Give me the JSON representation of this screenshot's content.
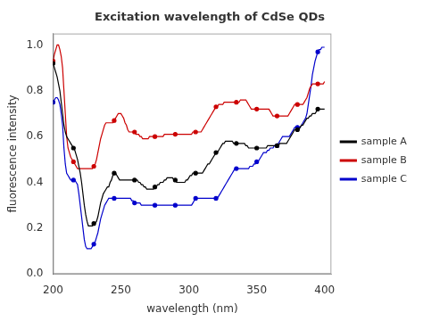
{
  "chart_data": {
    "type": "line",
    "title": "Excitation wavelength of CdSe QDs",
    "xlabel": "wavelength (nm)",
    "ylabel": "fluorescence intensity",
    "xlim": [
      200,
      405
    ],
    "ylim": [
      0,
      1.05
    ],
    "xticks": [
      200,
      250,
      300,
      350,
      400
    ],
    "yticks": [
      {
        "value": 0,
        "label": "0.0"
      },
      0.2,
      0.4,
      0.6,
      0.8,
      {
        "value": 1,
        "label": "1.0"
      }
    ],
    "grid": false,
    "legend": "right",
    "marker": "circle",
    "line_style": "solid",
    "x": [
      200,
      201,
      202,
      203,
      204,
      205,
      206,
      207,
      208,
      209,
      210,
      211,
      212,
      213,
      214,
      215,
      216,
      217,
      218,
      219,
      220,
      221,
      222,
      223,
      224,
      225,
      226,
      227,
      228,
      229,
      230,
      231,
      232,
      233,
      234,
      235,
      236,
      237,
      238,
      239,
      240,
      241,
      242,
      243,
      244,
      245,
      246,
      247,
      248,
      249,
      250,
      251,
      252,
      253,
      254,
      255,
      256,
      257,
      258,
      259,
      260,
      261,
      262,
      263,
      264,
      265,
      266,
      267,
      268,
      269,
      270,
      271,
      272,
      273,
      274,
      275,
      276,
      277,
      278,
      279,
      280,
      281,
      282,
      283,
      284,
      285,
      286,
      287,
      288,
      289,
      290,
      291,
      292,
      293,
      294,
      295,
      296,
      297,
      298,
      299,
      300,
      301,
      302,
      303,
      304,
      305,
      306,
      307,
      308,
      309,
      310,
      311,
      312,
      313,
      314,
      315,
      316,
      317,
      318,
      319,
      320,
      321,
      322,
      323,
      324,
      325,
      326,
      327,
      328,
      329,
      330,
      331,
      332,
      333,
      334,
      335,
      336,
      337,
      338,
      339,
      340,
      341,
      342,
      343,
      344,
      345,
      346,
      347,
      348,
      349,
      350,
      351,
      352,
      353,
      354,
      355,
      356,
      357,
      358,
      359,
      360,
      361,
      362,
      363,
      364,
      365,
      366,
      367,
      368,
      369,
      370,
      371,
      372,
      373,
      374,
      375,
      376,
      377,
      378,
      379,
      380,
      381,
      382,
      383,
      384,
      385,
      386,
      387,
      388,
      389,
      390,
      391,
      392,
      393,
      394,
      395,
      396,
      397,
      398,
      399,
      400
    ],
    "series": [
      {
        "name": "sample A",
        "color": "#000000",
        "values": [
          0.92,
          0.9,
          0.88,
          0.86,
          0.83,
          0.8,
          0.75,
          0.7,
          0.65,
          0.62,
          0.6,
          0.59,
          0.58,
          0.57,
          0.56,
          0.55,
          0.54,
          0.52,
          0.5,
          0.47,
          0.44,
          0.4,
          0.35,
          0.3,
          0.26,
          0.23,
          0.21,
          0.21,
          0.21,
          0.21,
          0.22,
          0.22,
          0.23,
          0.25,
          0.28,
          0.31,
          0.33,
          0.35,
          0.36,
          0.37,
          0.38,
          0.38,
          0.4,
          0.41,
          0.43,
          0.44,
          0.44,
          0.43,
          0.42,
          0.41,
          0.41,
          0.41,
          0.41,
          0.41,
          0.41,
          0.41,
          0.41,
          0.41,
          0.41,
          0.41,
          0.41,
          0.41,
          0.41,
          0.4,
          0.4,
          0.39,
          0.39,
          0.38,
          0.38,
          0.37,
          0.37,
          0.37,
          0.37,
          0.37,
          0.37,
          0.38,
          0.38,
          0.39,
          0.39,
          0.4,
          0.4,
          0.4,
          0.41,
          0.41,
          0.42,
          0.42,
          0.42,
          0.42,
          0.42,
          0.41,
          0.41,
          0.4,
          0.4,
          0.4,
          0.4,
          0.4,
          0.4,
          0.4,
          0.41,
          0.41,
          0.42,
          0.43,
          0.43,
          0.44,
          0.44,
          0.44,
          0.44,
          0.44,
          0.44,
          0.44,
          0.44,
          0.45,
          0.46,
          0.47,
          0.48,
          0.48,
          0.49,
          0.5,
          0.51,
          0.52,
          0.53,
          0.53,
          0.54,
          0.55,
          0.56,
          0.57,
          0.57,
          0.58,
          0.58,
          0.58,
          0.58,
          0.58,
          0.58,
          0.57,
          0.57,
          0.57,
          0.57,
          0.57,
          0.57,
          0.57,
          0.57,
          0.57,
          0.56,
          0.56,
          0.55,
          0.55,
          0.55,
          0.55,
          0.55,
          0.55,
          0.55,
          0.55,
          0.55,
          0.55,
          0.55,
          0.55,
          0.55,
          0.55,
          0.56,
          0.56,
          0.56,
          0.56,
          0.56,
          0.56,
          0.56,
          0.56,
          0.56,
          0.57,
          0.57,
          0.57,
          0.57,
          0.57,
          0.57,
          0.58,
          0.59,
          0.6,
          0.61,
          0.62,
          0.63,
          0.63,
          0.63,
          0.63,
          0.64,
          0.65,
          0.65,
          0.66,
          0.67,
          0.68,
          0.68,
          0.69,
          0.69,
          0.7,
          0.7,
          0.7,
          0.71,
          0.72,
          0.72,
          0.72,
          0.72,
          0.72,
          0.72
        ]
      },
      {
        "name": "sample B",
        "color": "#cc0000",
        "values": [
          0.93,
          0.96,
          0.98,
          1.0,
          1.0,
          0.98,
          0.95,
          0.9,
          0.8,
          0.7,
          0.6,
          0.55,
          0.53,
          0.51,
          0.5,
          0.49,
          0.48,
          0.47,
          0.46,
          0.46,
          0.46,
          0.46,
          0.46,
          0.46,
          0.46,
          0.46,
          0.46,
          0.46,
          0.46,
          0.46,
          0.47,
          0.48,
          0.5,
          0.53,
          0.56,
          0.59,
          0.61,
          0.63,
          0.65,
          0.66,
          0.66,
          0.66,
          0.66,
          0.66,
          0.66,
          0.67,
          0.68,
          0.69,
          0.7,
          0.7,
          0.7,
          0.69,
          0.68,
          0.66,
          0.65,
          0.63,
          0.62,
          0.62,
          0.62,
          0.62,
          0.62,
          0.61,
          0.61,
          0.61,
          0.6,
          0.6,
          0.59,
          0.59,
          0.59,
          0.59,
          0.59,
          0.6,
          0.6,
          0.6,
          0.6,
          0.6,
          0.6,
          0.6,
          0.6,
          0.6,
          0.6,
          0.6,
          0.61,
          0.61,
          0.61,
          0.61,
          0.61,
          0.61,
          0.61,
          0.61,
          0.61,
          0.61,
          0.61,
          0.61,
          0.61,
          0.61,
          0.61,
          0.61,
          0.61,
          0.61,
          0.61,
          0.61,
          0.61,
          0.62,
          0.62,
          0.62,
          0.62,
          0.62,
          0.62,
          0.62,
          0.63,
          0.64,
          0.65,
          0.66,
          0.67,
          0.68,
          0.69,
          0.7,
          0.71,
          0.72,
          0.73,
          0.73,
          0.74,
          0.74,
          0.74,
          0.74,
          0.75,
          0.75,
          0.75,
          0.75,
          0.75,
          0.75,
          0.75,
          0.75,
          0.75,
          0.75,
          0.75,
          0.75,
          0.76,
          0.76,
          0.76,
          0.76,
          0.76,
          0.75,
          0.74,
          0.73,
          0.72,
          0.72,
          0.72,
          0.72,
          0.72,
          0.72,
          0.72,
          0.72,
          0.72,
          0.72,
          0.72,
          0.72,
          0.72,
          0.72,
          0.71,
          0.7,
          0.69,
          0.69,
          0.69,
          0.69,
          0.69,
          0.69,
          0.69,
          0.69,
          0.69,
          0.69,
          0.69,
          0.69,
          0.7,
          0.71,
          0.72,
          0.73,
          0.74,
          0.74,
          0.74,
          0.74,
          0.74,
          0.74,
          0.74,
          0.75,
          0.76,
          0.77,
          0.79,
          0.81,
          0.82,
          0.83,
          0.83,
          0.83,
          0.83,
          0.83,
          0.83,
          0.83,
          0.83,
          0.83,
          0.84
        ]
      },
      {
        "name": "sample C",
        "color": "#0000cc",
        "values": [
          0.75,
          0.76,
          0.77,
          0.77,
          0.76,
          0.74,
          0.7,
          0.65,
          0.55,
          0.48,
          0.44,
          0.43,
          0.42,
          0.41,
          0.41,
          0.41,
          0.41,
          0.4,
          0.39,
          0.35,
          0.3,
          0.25,
          0.2,
          0.15,
          0.12,
          0.11,
          0.11,
          0.11,
          0.11,
          0.12,
          0.13,
          0.14,
          0.16,
          0.18,
          0.21,
          0.24,
          0.26,
          0.28,
          0.3,
          0.31,
          0.32,
          0.33,
          0.33,
          0.33,
          0.33,
          0.33,
          0.33,
          0.33,
          0.33,
          0.33,
          0.33,
          0.33,
          0.33,
          0.33,
          0.33,
          0.33,
          0.33,
          0.33,
          0.32,
          0.32,
          0.31,
          0.31,
          0.31,
          0.31,
          0.31,
          0.3,
          0.3,
          0.3,
          0.3,
          0.3,
          0.3,
          0.3,
          0.3,
          0.3,
          0.3,
          0.3,
          0.3,
          0.3,
          0.3,
          0.3,
          0.3,
          0.3,
          0.3,
          0.3,
          0.3,
          0.3,
          0.3,
          0.3,
          0.3,
          0.3,
          0.3,
          0.3,
          0.3,
          0.3,
          0.3,
          0.3,
          0.3,
          0.3,
          0.3,
          0.3,
          0.3,
          0.3,
          0.3,
          0.31,
          0.32,
          0.33,
          0.33,
          0.33,
          0.33,
          0.33,
          0.33,
          0.33,
          0.33,
          0.33,
          0.33,
          0.33,
          0.33,
          0.33,
          0.33,
          0.33,
          0.33,
          0.33,
          0.34,
          0.35,
          0.36,
          0.37,
          0.38,
          0.39,
          0.4,
          0.41,
          0.42,
          0.43,
          0.44,
          0.45,
          0.46,
          0.46,
          0.46,
          0.46,
          0.46,
          0.46,
          0.46,
          0.46,
          0.46,
          0.46,
          0.46,
          0.47,
          0.47,
          0.47,
          0.48,
          0.48,
          0.49,
          0.49,
          0.5,
          0.51,
          0.52,
          0.53,
          0.53,
          0.53,
          0.54,
          0.54,
          0.55,
          0.55,
          0.55,
          0.56,
          0.56,
          0.56,
          0.57,
          0.58,
          0.59,
          0.6,
          0.6,
          0.6,
          0.6,
          0.6,
          0.6,
          0.61,
          0.62,
          0.63,
          0.64,
          0.64,
          0.64,
          0.64,
          0.64,
          0.65,
          0.66,
          0.67,
          0.68,
          0.7,
          0.74,
          0.78,
          0.82,
          0.87,
          0.9,
          0.93,
          0.95,
          0.97,
          0.98,
          0.98,
          0.99,
          0.99,
          0.99
        ]
      }
    ]
  }
}
